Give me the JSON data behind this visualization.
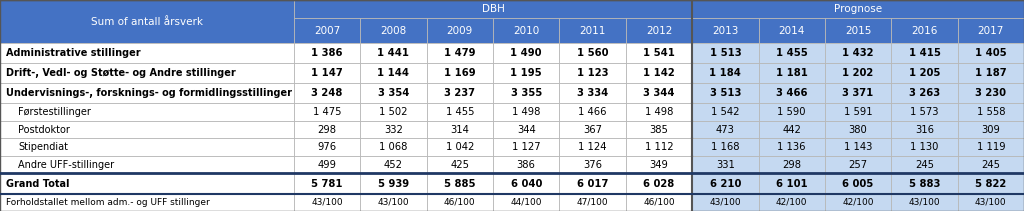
{
  "title_row": "Sum of antall årsverk",
  "dbh_label": "DBH",
  "prognose_label": "Prognose",
  "years": [
    "2007",
    "2008",
    "2009",
    "2010",
    "2011",
    "2012",
    "2013",
    "2014",
    "2015",
    "2016",
    "2017"
  ],
  "rows": [
    {
      "label": "Administrative stillinger",
      "bold": true,
      "indent": false,
      "grand": false,
      "footer": false,
      "values": [
        1386,
        1441,
        1479,
        1490,
        1560,
        1541,
        1513,
        1455,
        1432,
        1415,
        1405
      ]
    },
    {
      "label": "Drift-, Vedl- og Støtte- og Andre stillinger",
      "bold": true,
      "indent": false,
      "grand": false,
      "footer": false,
      "values": [
        1147,
        1144,
        1169,
        1195,
        1123,
        1142,
        1184,
        1181,
        1202,
        1205,
        1187
      ]
    },
    {
      "label": "Undervisnings-, forsknings- og formidlingsstillinger",
      "bold": true,
      "indent": false,
      "grand": false,
      "footer": false,
      "values": [
        3248,
        3354,
        3237,
        3355,
        3334,
        3344,
        3513,
        3466,
        3371,
        3263,
        3230
      ]
    },
    {
      "label": "  Førstestillinger",
      "bold": false,
      "indent": true,
      "grand": false,
      "footer": false,
      "values": [
        1475,
        1502,
        1455,
        1498,
        1466,
        1498,
        1542,
        1590,
        1591,
        1573,
        1558
      ]
    },
    {
      "label": "  Postdoktor",
      "bold": false,
      "indent": true,
      "grand": false,
      "footer": false,
      "values": [
        298,
        332,
        314,
        344,
        367,
        385,
        473,
        442,
        380,
        316,
        309
      ]
    },
    {
      "label": "  Stipendiat",
      "bold": false,
      "indent": true,
      "grand": false,
      "footer": false,
      "values": [
        976,
        1068,
        1042,
        1127,
        1124,
        1112,
        1168,
        1136,
        1143,
        1130,
        1119
      ]
    },
    {
      "label": "  Andre UFF-stillinger",
      "bold": false,
      "indent": true,
      "grand": false,
      "footer": false,
      "values": [
        499,
        452,
        425,
        386,
        376,
        349,
        331,
        298,
        257,
        245,
        245
      ]
    },
    {
      "label": "Grand Total",
      "bold": true,
      "indent": false,
      "grand": true,
      "footer": false,
      "values": [
        5781,
        5939,
        5885,
        6040,
        6017,
        6028,
        6210,
        6101,
        6005,
        5883,
        5822
      ]
    },
    {
      "label": "Forholdstallet mellom adm.- og UFF stillinger",
      "bold": false,
      "indent": false,
      "grand": false,
      "footer": true,
      "values_str": [
        "43/100",
        "43/100",
        "46/100",
        "44/100",
        "47/100",
        "46/100",
        "43/100",
        "42/100",
        "42/100",
        "43/100",
        "43/100"
      ]
    }
  ],
  "header_bg": "#4472C4",
  "header_text": "#FFFFFF",
  "white_bg": "#FFFFFF",
  "prognose_bg": "#C5D9F1",
  "grand_total_border_top": "#1F3864",
  "footer_bg": "#FFFFFF",
  "border_light": "#B8B8B8",
  "border_dark": "#595959",
  "text_color": "#000000"
}
